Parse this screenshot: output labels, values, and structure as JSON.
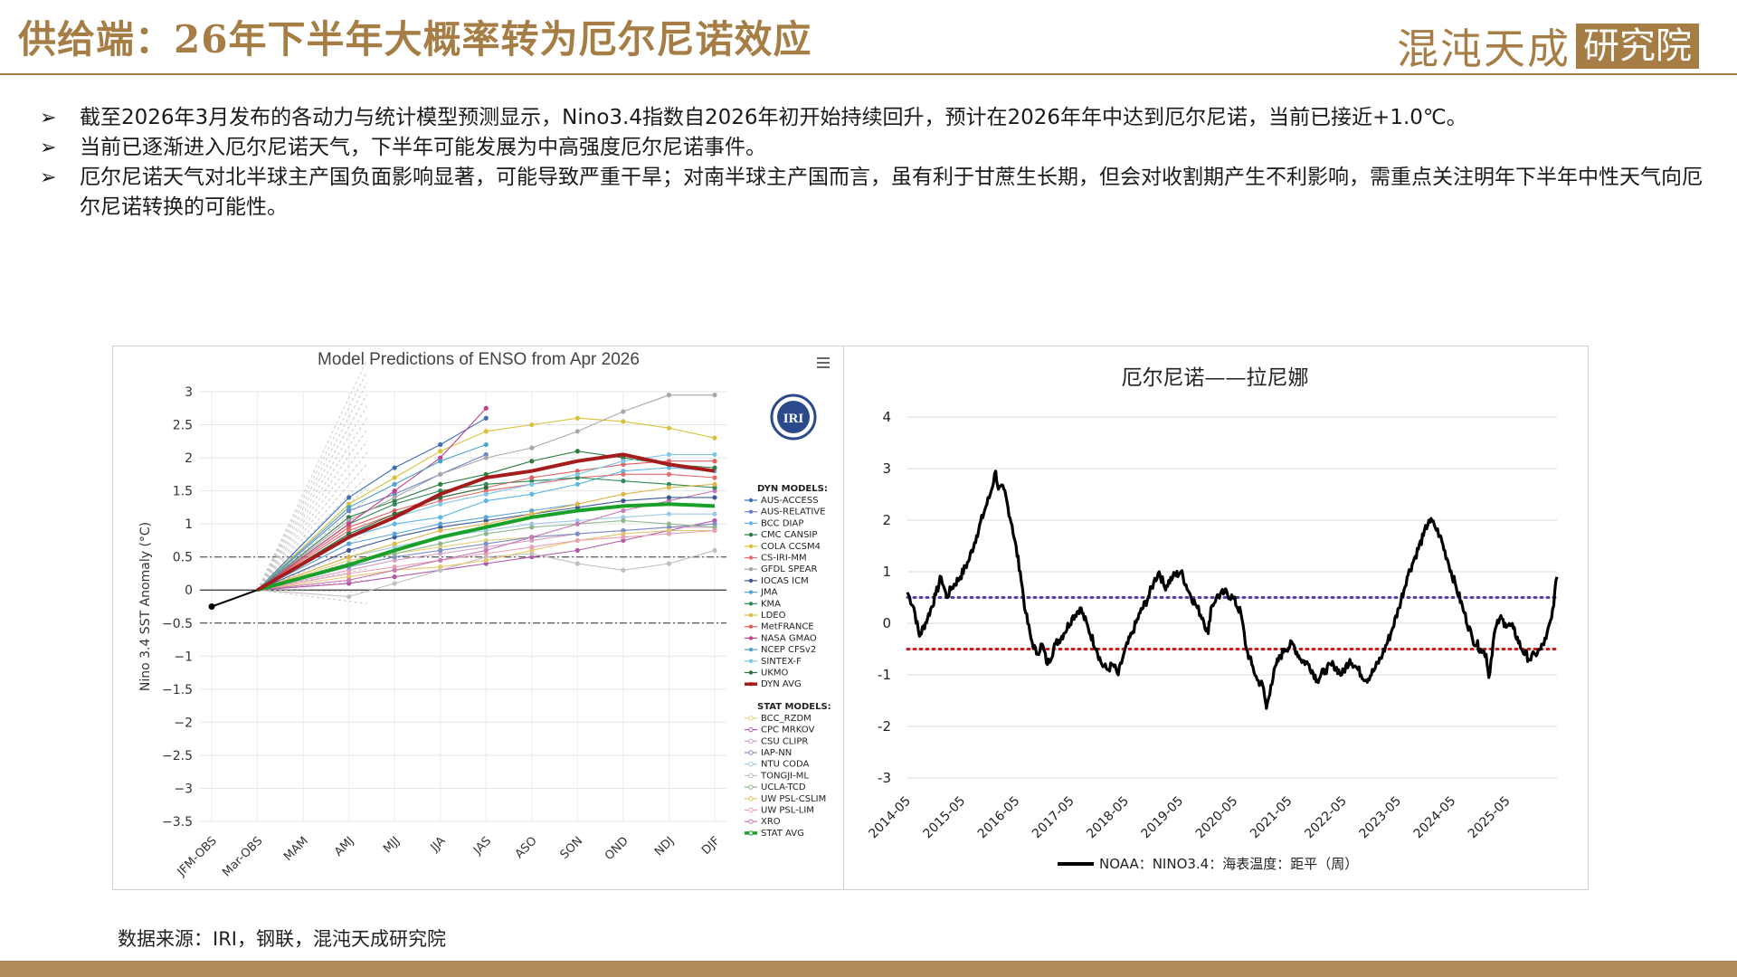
{
  "header": {
    "title": "供给端：26年下半年大概率转为厄尔尼诺效应",
    "logo_text": "混沌天成",
    "logo_box": "研究院"
  },
  "bullets": [
    "截至2026年3月发布的各动力与统计模型预测显示，Nino3.4指数自2026年初开始持续回升，预计在2026年年中达到厄尔尼诺，当前已接近+1.0℃。",
    "当前已逐渐进入厄尔尼诺天气，下半年可能发展为中高强度厄尔尼诺事件。",
    "厄尔尼诺天气对北半球主产国负面影响显著，可能导致严重干旱；对南半球主产国而言，虽有利于甘蔗生长期，但会对收割期产生不利影响，需重点关注明年下半年中性天气向厄尔尼诺转换的可能性。"
  ],
  "footer": "数据来源：IRI，钢联，混沌天成研究院",
  "chart_data": [
    {
      "type": "line",
      "title": "Model Predictions of ENSO from Apr 2026",
      "ylabel": "Nino 3.4 SST Anomaly (°C)",
      "ylim": [
        -3.5,
        3
      ],
      "yticks": [
        3,
        2.5,
        2,
        1.5,
        1,
        0.5,
        0,
        -0.5,
        -1,
        -1.5,
        -2,
        -2.5,
        -3,
        -3.5
      ],
      "categories": [
        "JFM-OBS",
        "Mar-OBS",
        "MAM",
        "AMJ",
        "MJJ",
        "JJA",
        "JAS",
        "ASO",
        "SON",
        "OND",
        "NDJ",
        "DJF"
      ],
      "reference_lines": [
        0.5,
        -0.5
      ],
      "logo": "IRI",
      "menu_icon": "hamburger-menu-icon",
      "observed": [
        -0.25,
        0
      ],
      "dyn_header": "DYN MODELS:",
      "stat_header": "STAT MODELS:",
      "dyn_models": [
        {
          "name": "AUS-ACCESS",
          "color": "#3b6fb6",
          "values": [
            null,
            0,
            null,
            1.4,
            1.85,
            2.2,
            2.6,
            null,
            null,
            null,
            null,
            null
          ]
        },
        {
          "name": "AUS-RELATIVE",
          "color": "#6b86c7",
          "values": [
            null,
            0,
            null,
            1.2,
            1.45,
            1.75,
            2.05,
            null,
            null,
            null,
            null,
            null
          ]
        },
        {
          "name": "BCC DIAP",
          "color": "#5fb7e6",
          "values": [
            null,
            0,
            null,
            0.8,
            1.0,
            1.1,
            1.35,
            1.45,
            1.6,
            1.8,
            1.85,
            1.8
          ]
        },
        {
          "name": "CMC CANSIP",
          "color": "#2f7d3f",
          "values": [
            null,
            0,
            null,
            1.1,
            1.35,
            1.6,
            1.75,
            1.95,
            2.1,
            2.0,
            1.9,
            1.85
          ]
        },
        {
          "name": "COLA CCSM4",
          "color": "#d9c23a",
          "values": [
            null,
            0,
            null,
            1.3,
            1.7,
            2.1,
            2.4,
            2.5,
            2.6,
            2.55,
            2.45,
            2.3
          ]
        },
        {
          "name": "CS-IRI-MM",
          "color": "#e36b6b",
          "values": [
            null,
            0,
            null,
            0.9,
            1.15,
            1.35,
            1.5,
            1.6,
            1.7,
            1.75,
            1.75,
            1.7
          ]
        },
        {
          "name": "GFDL SPEAR",
          "color": "#a8a8a8",
          "values": [
            null,
            0,
            null,
            1.05,
            1.4,
            1.75,
            2.0,
            2.15,
            2.4,
            2.7,
            2.95,
            2.95
          ]
        },
        {
          "name": "IOCAS ICM",
          "color": "#3c5a99",
          "values": [
            null,
            0,
            null,
            0.6,
            0.8,
            0.95,
            1.05,
            1.15,
            1.25,
            1.35,
            1.4,
            1.4
          ]
        },
        {
          "name": "JMA",
          "color": "#5aa3d8",
          "values": [
            null,
            0,
            null,
            0.7,
            0.85,
            1.0,
            1.1,
            1.2,
            1.3,
            null,
            null,
            null
          ]
        },
        {
          "name": "KMA",
          "color": "#2e8b57",
          "values": [
            null,
            0,
            null,
            1.0,
            1.3,
            1.5,
            1.6,
            1.65,
            1.7,
            1.65,
            1.6,
            1.55
          ]
        },
        {
          "name": "LDEO",
          "color": "#e0b64a",
          "values": [
            null,
            0,
            null,
            0.5,
            0.7,
            0.9,
            1.0,
            1.15,
            1.3,
            1.45,
            1.55,
            1.6
          ]
        },
        {
          "name": "MetFRANCE",
          "color": "#e06060",
          "values": [
            null,
            0,
            null,
            0.95,
            1.2,
            1.4,
            1.55,
            1.7,
            1.8,
            1.9,
            1.95,
            1.95
          ]
        },
        {
          "name": "NASA GMAO",
          "color": "#c0408a",
          "values": [
            null,
            0,
            null,
            1.0,
            1.5,
            2.0,
            2.75,
            null,
            null,
            null,
            null,
            null
          ]
        },
        {
          "name": "NCEP CFSv2",
          "color": "#4aa3c9",
          "values": [
            null,
            0,
            null,
            1.25,
            1.6,
            1.95,
            2.2,
            null,
            null,
            null,
            null,
            null
          ]
        },
        {
          "name": "SINTEX-F",
          "color": "#7fc7e8",
          "values": [
            null,
            0,
            null,
            0.85,
            1.1,
            1.3,
            1.45,
            1.6,
            1.75,
            1.95,
            2.05,
            2.05
          ]
        },
        {
          "name": "UKMO",
          "color": "#2f6f3f",
          "values": [
            null,
            0,
            null,
            0.85,
            1.15,
            1.4,
            1.55,
            null,
            null,
            null,
            null,
            null
          ]
        },
        {
          "name": "DYN AVG",
          "color": "#a51c1c",
          "values": [
            null,
            0,
            null,
            0.8,
            1.1,
            1.45,
            1.7,
            1.8,
            1.95,
            2.05,
            1.9,
            1.8
          ]
        }
      ],
      "stat_models": [
        {
          "name": "BCC_RZDM",
          "color": "#e3d27a",
          "values": [
            null,
            0,
            null,
            0.45,
            0.55,
            0.65,
            0.75,
            0.8,
            0.85,
            0.9,
            0.95,
            1.0
          ]
        },
        {
          "name": "CPC MRKOV",
          "color": "#b05aa8",
          "values": [
            null,
            0,
            null,
            0.1,
            0.2,
            0.3,
            0.4,
            0.5,
            0.6,
            0.75,
            0.9,
            1.05
          ]
        },
        {
          "name": "CSU CLIPR",
          "color": "#d6a0c8",
          "values": [
            null,
            0,
            null,
            0.3,
            0.45,
            0.55,
            0.65,
            0.75,
            0.85,
            0.9,
            0.95,
            0.95
          ]
        },
        {
          "name": "IAP-NN",
          "color": "#7d8fc9",
          "values": [
            null,
            0,
            null,
            0.35,
            0.5,
            0.6,
            0.7,
            0.8,
            0.85,
            0.9,
            0.95,
            1.0
          ]
        },
        {
          "name": "NTU CODA",
          "color": "#9fc9e6",
          "values": [
            null,
            0,
            null,
            0.5,
            0.65,
            0.8,
            0.9,
            1.0,
            1.05,
            1.1,
            1.15,
            1.15
          ]
        },
        {
          "name": "TONGJI-ML",
          "color": "#bfbfbf",
          "values": [
            null,
            0,
            null,
            -0.1,
            0.1,
            0.3,
            0.5,
            0.55,
            0.4,
            0.3,
            0.4,
            0.6
          ]
        },
        {
          "name": "UCLA-TCD",
          "color": "#8fb58f",
          "values": [
            null,
            0,
            null,
            0.4,
            0.55,
            0.7,
            0.85,
            0.95,
            1.0,
            1.05,
            1.0,
            0.95
          ]
        },
        {
          "name": "UW PSL-CSLIM",
          "color": "#e6c66a",
          "values": [
            null,
            0,
            null,
            0.2,
            0.3,
            0.35,
            0.45,
            0.6,
            0.75,
            0.85,
            0.9,
            0.9
          ]
        },
        {
          "name": "UW PSL-LIM",
          "color": "#e8a0b4",
          "values": [
            null,
            0,
            null,
            0.25,
            0.35,
            0.45,
            0.55,
            0.65,
            0.75,
            0.8,
            0.85,
            0.9
          ]
        },
        {
          "name": "XRO",
          "color": "#c87ab4",
          "values": [
            null,
            0,
            null,
            0.15,
            0.3,
            0.45,
            0.6,
            0.8,
            1.0,
            1.2,
            1.35,
            1.5
          ]
        },
        {
          "name": "STAT AVG",
          "color": "#18a028",
          "values": [
            null,
            0,
            null,
            0.38,
            0.6,
            0.8,
            0.95,
            1.1,
            1.2,
            1.27,
            1.3,
            1.27
          ]
        }
      ]
    },
    {
      "type": "line",
      "title": "厄尔尼诺——拉尼娜",
      "ylim": [
        -3,
        4
      ],
      "yticks": [
        4,
        3,
        2,
        1,
        0,
        -1,
        -2,
        -3
      ],
      "xticks": [
        "2014-05",
        "2015-05",
        "2016-05",
        "2017-05",
        "2018-05",
        "2019-05",
        "2020-05",
        "2021-05",
        "2022-05",
        "2023-05",
        "2024-05",
        "2025-05"
      ],
      "x_range": [
        2014.33,
        2026.25
      ],
      "reference_lines": [
        {
          "value": 0.5,
          "color": "#5b3fa6"
        },
        {
          "value": -0.5,
          "color": "#c81e1e"
        }
      ],
      "legend_position": "bottom",
      "series": [
        {
          "name": "NOAA：NINO3.4：海表温度：距平（周）",
          "color": "#000000",
          "anchors": [
            [
              2014.33,
              0.6
            ],
            [
              2014.45,
              0.3
            ],
            [
              2014.55,
              -0.25
            ],
            [
              2014.7,
              0.1
            ],
            [
              2014.85,
              0.55
            ],
            [
              2014.95,
              0.9
            ],
            [
              2015.05,
              0.5
            ],
            [
              2015.15,
              0.7
            ],
            [
              2015.3,
              0.9
            ],
            [
              2015.45,
              1.2
            ],
            [
              2015.6,
              1.7
            ],
            [
              2015.75,
              2.2
            ],
            [
              2015.85,
              2.5
            ],
            [
              2015.95,
              2.95
            ],
            [
              2016.0,
              2.6
            ],
            [
              2016.1,
              2.6
            ],
            [
              2016.25,
              1.9
            ],
            [
              2016.4,
              1.0
            ],
            [
              2016.5,
              0.2
            ],
            [
              2016.6,
              -0.3
            ],
            [
              2016.7,
              -0.6
            ],
            [
              2016.8,
              -0.4
            ],
            [
              2016.9,
              -0.8
            ],
            [
              2017.05,
              -0.4
            ],
            [
              2017.2,
              -0.2
            ],
            [
              2017.35,
              0.1
            ],
            [
              2017.5,
              0.3
            ],
            [
              2017.65,
              -0.1
            ],
            [
              2017.8,
              -0.5
            ],
            [
              2017.9,
              -0.8
            ],
            [
              2018.0,
              -0.9
            ],
            [
              2018.1,
              -0.8
            ],
            [
              2018.2,
              -1.0
            ],
            [
              2018.3,
              -0.6
            ],
            [
              2018.45,
              -0.2
            ],
            [
              2018.6,
              0.2
            ],
            [
              2018.75,
              0.5
            ],
            [
              2018.85,
              0.8
            ],
            [
              2018.95,
              1.0
            ],
            [
              2019.05,
              0.7
            ],
            [
              2019.2,
              0.9
            ],
            [
              2019.35,
              1.0
            ],
            [
              2019.5,
              0.6
            ],
            [
              2019.65,
              0.3
            ],
            [
              2019.75,
              0.1
            ],
            [
              2019.85,
              -0.2
            ],
            [
              2019.9,
              0.3
            ],
            [
              2020.0,
              0.5
            ],
            [
              2020.15,
              0.6
            ],
            [
              2020.3,
              0.5
            ],
            [
              2020.45,
              0.2
            ],
            [
              2020.55,
              -0.5
            ],
            [
              2020.65,
              -0.8
            ],
            [
              2020.75,
              -1.1
            ],
            [
              2020.85,
              -1.2
            ],
            [
              2020.92,
              -1.65
            ],
            [
              2021.0,
              -1.2
            ],
            [
              2021.1,
              -0.8
            ],
            [
              2021.25,
              -0.5
            ],
            [
              2021.4,
              -0.4
            ],
            [
              2021.55,
              -0.7
            ],
            [
              2021.7,
              -0.8
            ],
            [
              2021.85,
              -1.1
            ],
            [
              2022.0,
              -0.9
            ],
            [
              2022.15,
              -0.8
            ],
            [
              2022.3,
              -1.0
            ],
            [
              2022.45,
              -0.7
            ],
            [
              2022.6,
              -0.9
            ],
            [
              2022.75,
              -1.1
            ],
            [
              2022.9,
              -0.9
            ],
            [
              2023.05,
              -0.6
            ],
            [
              2023.2,
              -0.2
            ],
            [
              2023.35,
              0.3
            ],
            [
              2023.5,
              0.9
            ],
            [
              2023.65,
              1.3
            ],
            [
              2023.8,
              1.7
            ],
            [
              2023.9,
              2.0
            ],
            [
              2024.0,
              1.9
            ],
            [
              2024.1,
              1.7
            ],
            [
              2024.25,
              1.2
            ],
            [
              2024.4,
              0.7
            ],
            [
              2024.55,
              0.2
            ],
            [
              2024.7,
              -0.3
            ],
            [
              2024.85,
              -0.5
            ],
            [
              2024.95,
              -0.6
            ],
            [
              2025.0,
              -1.05
            ],
            [
              2025.1,
              -0.2
            ],
            [
              2025.2,
              0.1
            ],
            [
              2025.3,
              0.0
            ],
            [
              2025.45,
              -0.1
            ],
            [
              2025.6,
              -0.5
            ],
            [
              2025.75,
              -0.7
            ],
            [
              2025.85,
              -0.6
            ],
            [
              2025.95,
              -0.5
            ],
            [
              2026.05,
              -0.3
            ],
            [
              2026.15,
              0.1
            ],
            [
              2026.25,
              0.9
            ]
          ]
        }
      ]
    }
  ]
}
